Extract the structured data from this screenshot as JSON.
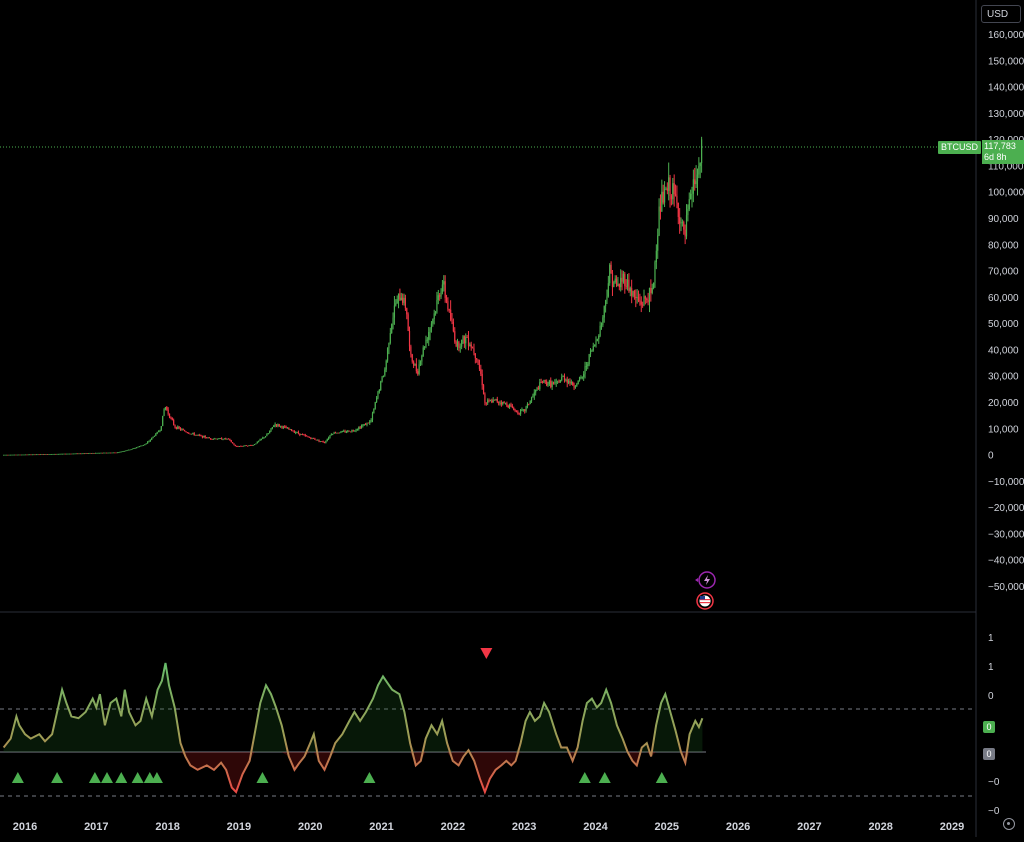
{
  "currency_button": "USD",
  "symbol": "BTCUSD",
  "last_price": "117,783",
  "countdown": "6d 8h",
  "colors": {
    "up": "#4caf50",
    "down": "#f23645",
    "osc_high": "#66bb6a",
    "osc_low": "#ef4444"
  },
  "icons": [
    "flash-icon",
    "us-flag-icon",
    "settings-icon"
  ],
  "oscillator_tags": {
    "upper": "0",
    "lower": "0"
  },
  "chart_data": [
    {
      "type": "line",
      "title": "",
      "series_name": "BTCUSD",
      "x_axis_labels": [
        "2016",
        "2017",
        "2018",
        "2019",
        "2020",
        "2021",
        "2022",
        "2023",
        "2024",
        "2025",
        "2026",
        "2027",
        "2028",
        "2029"
      ],
      "y_axis_labels": [
        "160,000",
        "150,000",
        "140,000",
        "130,000",
        "120,000",
        "110,000",
        "100,000",
        "90,000",
        "80,000",
        "70,000",
        "60,000",
        "50,000",
        "40,000",
        "30,000",
        "20,000",
        "10,000",
        "0",
        "−10,000",
        "−20,000",
        "−30,000",
        "−40,000",
        "−50,000"
      ],
      "ylim": [
        -53000,
        162000
      ],
      "xlim": [
        2015.7,
        2029.15
      ],
      "last_value": 117783,
      "points": [
        [
          2015.7,
          300
        ],
        [
          2016.0,
          400
        ],
        [
          2016.5,
          650
        ],
        [
          2017.0,
          1000
        ],
        [
          2017.3,
          1200
        ],
        [
          2017.5,
          2500
        ],
        [
          2017.7,
          4500
        ],
        [
          2017.9,
          10000
        ],
        [
          2017.96,
          19000
        ],
        [
          2018.1,
          11000
        ],
        [
          2018.3,
          8500
        ],
        [
          2018.6,
          6500
        ],
        [
          2018.85,
          6300
        ],
        [
          2018.95,
          3500
        ],
        [
          2019.2,
          4000
        ],
        [
          2019.4,
          8000
        ],
        [
          2019.5,
          12000
        ],
        [
          2019.7,
          10000
        ],
        [
          2019.95,
          7200
        ],
        [
          2020.2,
          5000
        ],
        [
          2020.3,
          8500
        ],
        [
          2020.6,
          9500
        ],
        [
          2020.85,
          13000
        ],
        [
          2020.95,
          24000
        ],
        [
          2021.05,
          33000
        ],
        [
          2021.12,
          48000
        ],
        [
          2021.2,
          58000
        ],
        [
          2021.28,
          61000
        ],
        [
          2021.35,
          56000
        ],
        [
          2021.4,
          38000
        ],
        [
          2021.5,
          32000
        ],
        [
          2021.6,
          42000
        ],
        [
          2021.75,
          55000
        ],
        [
          2021.85,
          66000
        ],
        [
          2021.92,
          58000
        ],
        [
          2022.05,
          42000
        ],
        [
          2022.2,
          45000
        ],
        [
          2022.33,
          38000
        ],
        [
          2022.4,
          30000
        ],
        [
          2022.45,
          20000
        ],
        [
          2022.6,
          21000
        ],
        [
          2022.8,
          19000
        ],
        [
          2022.9,
          16500
        ],
        [
          2023.0,
          17000
        ],
        [
          2023.15,
          24000
        ],
        [
          2023.25,
          28000
        ],
        [
          2023.45,
          27000
        ],
        [
          2023.55,
          30000
        ],
        [
          2023.7,
          26500
        ],
        [
          2023.82,
          30000
        ],
        [
          2023.9,
          37000
        ],
        [
          2024.0,
          43000
        ],
        [
          2024.1,
          52000
        ],
        [
          2024.2,
          70000
        ],
        [
          2024.3,
          64000
        ],
        [
          2024.4,
          68000
        ],
        [
          2024.55,
          60000
        ],
        [
          2024.65,
          58000
        ],
        [
          2024.8,
          62000
        ],
        [
          2024.9,
          95000
        ],
        [
          2024.98,
          100000
        ],
        [
          2025.05,
          102000
        ],
        [
          2025.15,
          95000
        ],
        [
          2025.25,
          82000
        ],
        [
          2025.3,
          93000
        ],
        [
          2025.38,
          104000
        ],
        [
          2025.45,
          107000
        ],
        [
          2025.5,
          117783
        ]
      ]
    },
    {
      "type": "area",
      "series_name": "oscillator",
      "y_axis_labels": [
        "1",
        "1",
        "0",
        "−0",
        "−0"
      ],
      "points": [
        [
          2015.7,
          0.05
        ],
        [
          2015.8,
          0.15
        ],
        [
          2015.88,
          0.4
        ],
        [
          2015.92,
          0.3
        ],
        [
          2016.0,
          0.2
        ],
        [
          2016.08,
          0.15
        ],
        [
          2016.2,
          0.2
        ],
        [
          2016.28,
          0.12
        ],
        [
          2016.38,
          0.2
        ],
        [
          2016.45,
          0.45
        ],
        [
          2016.52,
          0.7
        ],
        [
          2016.58,
          0.55
        ],
        [
          2016.65,
          0.4
        ],
        [
          2016.75,
          0.38
        ],
        [
          2016.85,
          0.45
        ],
        [
          2016.95,
          0.6
        ],
        [
          2017.0,
          0.5
        ],
        [
          2017.05,
          0.65
        ],
        [
          2017.12,
          0.3
        ],
        [
          2017.2,
          0.55
        ],
        [
          2017.28,
          0.6
        ],
        [
          2017.35,
          0.4
        ],
        [
          2017.4,
          0.7
        ],
        [
          2017.46,
          0.45
        ],
        [
          2017.55,
          0.3
        ],
        [
          2017.62,
          0.35
        ],
        [
          2017.7,
          0.6
        ],
        [
          2017.78,
          0.4
        ],
        [
          2017.86,
          0.7
        ],
        [
          2017.92,
          0.8
        ],
        [
          2017.97,
          1.0
        ],
        [
          2018.02,
          0.75
        ],
        [
          2018.1,
          0.5
        ],
        [
          2018.18,
          0.1
        ],
        [
          2018.25,
          -0.05
        ],
        [
          2018.32,
          -0.15
        ],
        [
          2018.42,
          -0.2
        ],
        [
          2018.55,
          -0.15
        ],
        [
          2018.65,
          -0.2
        ],
        [
          2018.75,
          -0.12
        ],
        [
          2018.82,
          -0.2
        ],
        [
          2018.9,
          -0.4
        ],
        [
          2018.96,
          -0.45
        ],
        [
          2019.05,
          -0.25
        ],
        [
          2019.15,
          -0.1
        ],
        [
          2019.22,
          0.2
        ],
        [
          2019.3,
          0.55
        ],
        [
          2019.38,
          0.75
        ],
        [
          2019.45,
          0.65
        ],
        [
          2019.52,
          0.5
        ],
        [
          2019.6,
          0.3
        ],
        [
          2019.7,
          -0.05
        ],
        [
          2019.78,
          -0.2
        ],
        [
          2019.85,
          -0.12
        ],
        [
          2019.92,
          -0.05
        ],
        [
          2020.0,
          0.1
        ],
        [
          2020.05,
          0.2
        ],
        [
          2020.12,
          -0.1
        ],
        [
          2020.2,
          -0.2
        ],
        [
          2020.28,
          -0.05
        ],
        [
          2020.35,
          0.1
        ],
        [
          2020.45,
          0.2
        ],
        [
          2020.55,
          0.35
        ],
        [
          2020.62,
          0.45
        ],
        [
          2020.7,
          0.35
        ],
        [
          2020.78,
          0.45
        ],
        [
          2020.88,
          0.6
        ],
        [
          2020.95,
          0.75
        ],
        [
          2021.02,
          0.85
        ],
        [
          2021.08,
          0.78
        ],
        [
          2021.15,
          0.7
        ],
        [
          2021.25,
          0.65
        ],
        [
          2021.32,
          0.45
        ],
        [
          2021.4,
          0.1
        ],
        [
          2021.48,
          -0.15
        ],
        [
          2021.55,
          -0.1
        ],
        [
          2021.62,
          0.15
        ],
        [
          2021.7,
          0.3
        ],
        [
          2021.78,
          0.2
        ],
        [
          2021.85,
          0.35
        ],
        [
          2021.92,
          0.1
        ],
        [
          2022.0,
          -0.1
        ],
        [
          2022.08,
          -0.15
        ],
        [
          2022.15,
          -0.05
        ],
        [
          2022.22,
          0.02
        ],
        [
          2022.3,
          -0.1
        ],
        [
          2022.38,
          -0.3
        ],
        [
          2022.45,
          -0.45
        ],
        [
          2022.52,
          -0.3
        ],
        [
          2022.6,
          -0.2
        ],
        [
          2022.68,
          -0.15
        ],
        [
          2022.75,
          -0.1
        ],
        [
          2022.82,
          -0.15
        ],
        [
          2022.88,
          -0.1
        ],
        [
          2022.95,
          0.1
        ],
        [
          2023.02,
          0.35
        ],
        [
          2023.08,
          0.45
        ],
        [
          2023.15,
          0.35
        ],
        [
          2023.22,
          0.4
        ],
        [
          2023.28,
          0.55
        ],
        [
          2023.35,
          0.45
        ],
        [
          2023.45,
          0.2
        ],
        [
          2023.52,
          0.05
        ],
        [
          2023.6,
          0.05
        ],
        [
          2023.68,
          -0.1
        ],
        [
          2023.75,
          0.05
        ],
        [
          2023.82,
          0.35
        ],
        [
          2023.88,
          0.55
        ],
        [
          2023.95,
          0.6
        ],
        [
          2024.02,
          0.5
        ],
        [
          2024.08,
          0.55
        ],
        [
          2024.15,
          0.7
        ],
        [
          2024.22,
          0.55
        ],
        [
          2024.3,
          0.3
        ],
        [
          2024.38,
          0.15
        ],
        [
          2024.45,
          0.0
        ],
        [
          2024.52,
          -0.1
        ],
        [
          2024.58,
          -0.15
        ],
        [
          2024.65,
          0.05
        ],
        [
          2024.72,
          0.1
        ],
        [
          2024.78,
          -0.05
        ],
        [
          2024.85,
          0.3
        ],
        [
          2024.92,
          0.55
        ],
        [
          2024.98,
          0.65
        ],
        [
          2025.05,
          0.45
        ],
        [
          2025.12,
          0.25
        ],
        [
          2025.2,
          0.0
        ],
        [
          2025.26,
          -0.12
        ],
        [
          2025.32,
          0.2
        ],
        [
          2025.4,
          0.35
        ],
        [
          2025.45,
          0.28
        ],
        [
          2025.5,
          0.38
        ]
      ],
      "buy_markers": [
        2015.9,
        2016.45,
        2016.98,
        2017.15,
        2017.35,
        2017.58,
        2017.75,
        2017.85,
        2019.33,
        2020.83,
        2023.85,
        2024.13,
        2024.93
      ],
      "sell_markers": [
        2022.47
      ]
    }
  ]
}
